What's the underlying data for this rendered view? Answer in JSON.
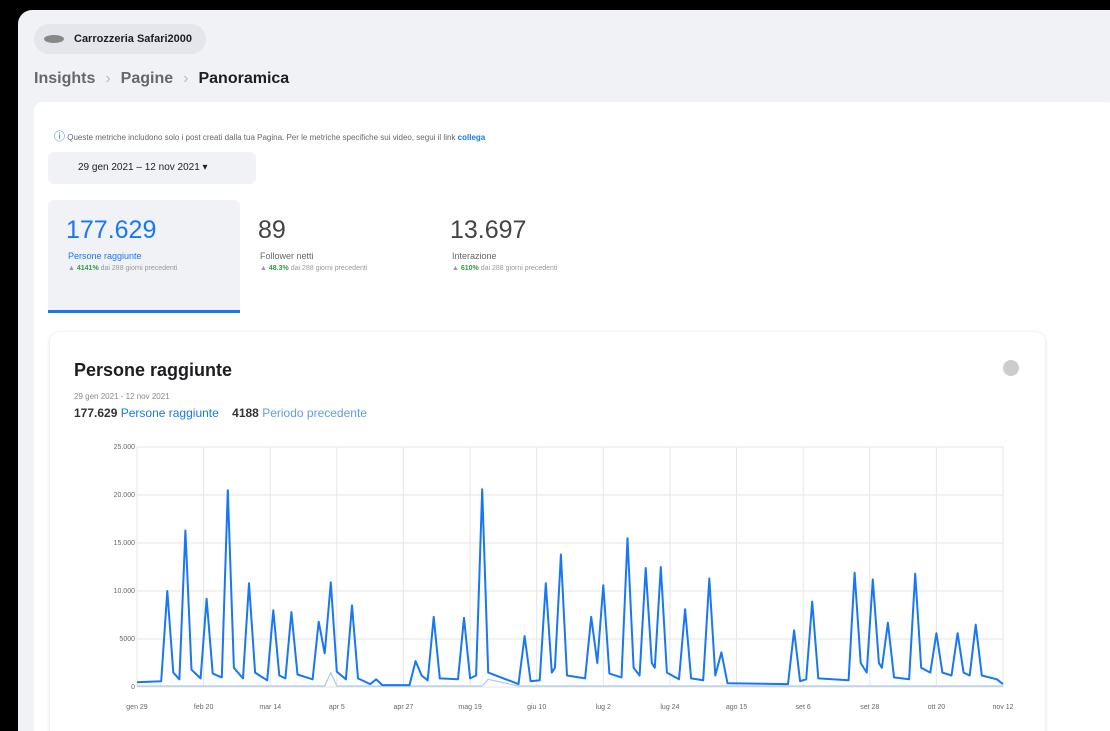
{
  "page": {
    "menu": "Carrozzeria Safari2000",
    "breadcrumb": [
      "Insights",
      "Pagine",
      "Panoramica"
    ],
    "info": "Queste metriche includono solo i post creati dalla tua Pagina. Per le metriche specifiche sui video, segui il link",
    "info_link": "collega",
    "date_range": "29 gen 2021 – 12 nov 2021",
    "metrics": [
      {
        "value": "177.629",
        "label": "Persone raggiunte",
        "change": "4141%",
        "suffix": "dai 288 giorni precedenti"
      },
      {
        "value": "89",
        "label": "Follower netti",
        "change": "48.3%",
        "suffix": "dai 288 giorni precedenti"
      },
      {
        "value": "13.697",
        "label": "Interazione",
        "change": "610%",
        "suffix": "dai 288 giorni precedenti"
      }
    ],
    "totals": [
      "177.629",
      "4188"
    ]
  },
  "chart_data": {
    "type": "line",
    "title": "Persone raggiunte",
    "subtitle": "29 gen 2021 - 12 nov 2021",
    "x": [
      0,
      8,
      10,
      12,
      14,
      16,
      18,
      21,
      23,
      25,
      28,
      30,
      32,
      35,
      37,
      39,
      43,
      45,
      47,
      49,
      51,
      53,
      58,
      60,
      62,
      64,
      66,
      69,
      71,
      73,
      77,
      79,
      81,
      90,
      92,
      94,
      96,
      98,
      100,
      106,
      108,
      110,
      112,
      114,
      116,
      126,
      128,
      130,
      133,
      135,
      137,
      138,
      140,
      142,
      148,
      150,
      152,
      154,
      156,
      160,
      162,
      164,
      166,
      168,
      170,
      171,
      173,
      175,
      179,
      181,
      183,
      187,
      189,
      191,
      193,
      195,
      215,
      217,
      219,
      221,
      223,
      225,
      235,
      237,
      239,
      241,
      243,
      245,
      246,
      248,
      250,
      255,
      257,
      259,
      262,
      264,
      266,
      269,
      271,
      273,
      275,
      277,
      279,
      284,
      286
    ],
    "series": [
      {
        "name": "Persone raggiunte",
        "color": "#1877f2",
        "values": [
          500,
          600,
          10000,
          1500,
          800,
          16300,
          1800,
          900,
          9200,
          1400,
          1000,
          20500,
          2000,
          900,
          10800,
          1500,
          700,
          8000,
          1200,
          900,
          7800,
          1300,
          800,
          6800,
          3500,
          10900,
          1600,
          800,
          8500,
          900,
          300,
          800,
          200,
          200,
          2700,
          1200,
          700,
          7300,
          900,
          800,
          7200,
          900,
          1200,
          20600,
          1500,
          300,
          5300,
          600,
          700,
          10800,
          1500,
          2000,
          13800,
          1200,
          900,
          7300,
          2500,
          10600,
          1400,
          1000,
          15500,
          2000,
          1200,
          12400,
          2500,
          2000,
          12500,
          1500,
          800,
          8100,
          900,
          700,
          11300,
          1200,
          3600,
          400,
          300,
          5900,
          600,
          800,
          8900,
          900,
          700,
          11900,
          2500,
          1500,
          11200,
          2500,
          2000,
          6700,
          1000,
          800,
          11800,
          2000,
          1500,
          5600,
          1500,
          1200,
          5600,
          1500,
          1200,
          6500,
          1200,
          800,
          300
        ]
      },
      {
        "name": "Periodo precedente",
        "color": "#a9c9f5",
        "values": [
          100,
          100,
          100,
          100,
          100,
          100,
          100,
          100,
          100,
          100,
          100,
          100,
          100,
          100,
          100,
          100,
          100,
          100,
          100,
          100,
          100,
          100,
          100,
          100,
          100,
          1500,
          100,
          100,
          100,
          100,
          100,
          100,
          100,
          100,
          100,
          100,
          100,
          100,
          100,
          100,
          100,
          100,
          100,
          100,
          800,
          100,
          100,
          100,
          100,
          100,
          100,
          100,
          100,
          100,
          100,
          100,
          100,
          100,
          100,
          100,
          100,
          100,
          100,
          100,
          100,
          100,
          100,
          100,
          100,
          100,
          100,
          100,
          100,
          100,
          100,
          100,
          100,
          100,
          100,
          100,
          100,
          100,
          100,
          100,
          100,
          100,
          100,
          100,
          100,
          100,
          100,
          100,
          100,
          100,
          100,
          100,
          100,
          100,
          100,
          100,
          100,
          100,
          100,
          100,
          100
        ]
      }
    ],
    "xlim": [
      0,
      286
    ],
    "xticks": [
      {
        "value": 0,
        "label": "gen 29"
      },
      {
        "value": 22,
        "label": "feb 20"
      },
      {
        "value": 44,
        "label": "mar 14"
      },
      {
        "value": 66,
        "label": "apr 5"
      },
      {
        "value": 88,
        "label": "apr 27"
      },
      {
        "value": 110,
        "label": "mag 19"
      },
      {
        "value": 132,
        "label": "giu 10"
      },
      {
        "value": 154,
        "label": "lug 2"
      },
      {
        "value": 176,
        "label": "lug 24"
      },
      {
        "value": 198,
        "label": "ago 15"
      },
      {
        "value": 220,
        "label": "set 6"
      },
      {
        "value": 242,
        "label": "set 28"
      },
      {
        "value": 264,
        "label": "ott 20"
      },
      {
        "value": 286,
        "label": "nov 12"
      }
    ],
    "ylim": [
      0,
      25000
    ],
    "yticks": [
      0,
      5000,
      {
        "value": 10000,
        "label": "10.000"
      },
      {
        "value": 15000,
        "label": "15.000"
      },
      {
        "value": 20000,
        "label": "20.000"
      },
      {
        "value": 25000,
        "label": "25.000"
      }
    ],
    "grid": true
  }
}
